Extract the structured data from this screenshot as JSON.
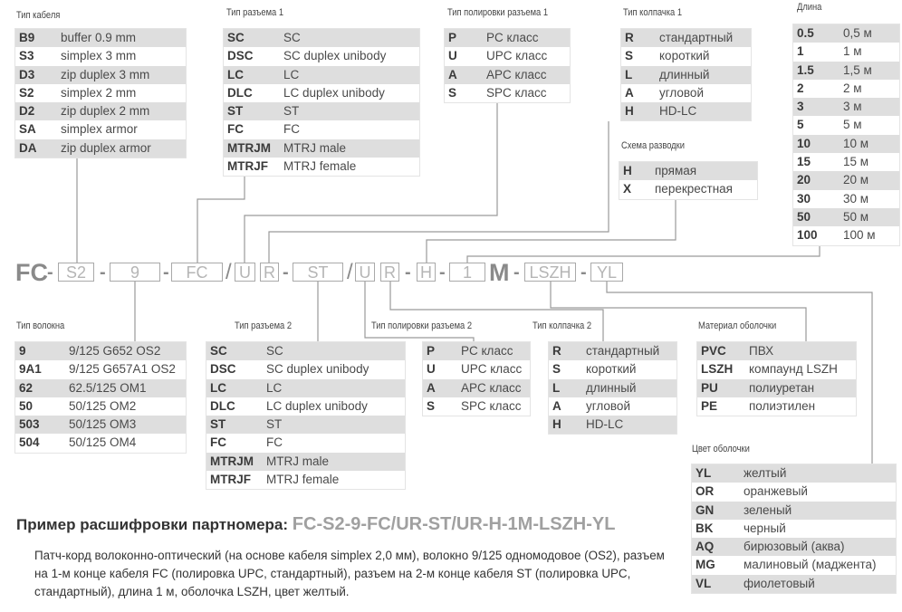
{
  "tables": {
    "cable": {
      "label": "Тип кабеля",
      "rows": [
        [
          "B9",
          "buffer 0.9 mm"
        ],
        [
          "S3",
          "simplex 3 mm"
        ],
        [
          "D3",
          "zip duplex 3 mm"
        ],
        [
          "S2",
          "simplex 2 mm"
        ],
        [
          "D2",
          "zip duplex 2 mm"
        ],
        [
          "SA",
          "simplex armor"
        ],
        [
          "DA",
          "zip duplex armor"
        ]
      ]
    },
    "connector1": {
      "label": "Тип разъема 1",
      "rows": [
        [
          "SC",
          "SC"
        ],
        [
          "DSC",
          "SC duplex unibody"
        ],
        [
          "LC",
          "LC"
        ],
        [
          "DLC",
          "LC duplex unibody"
        ],
        [
          "ST",
          "ST"
        ],
        [
          "FC",
          "FC"
        ],
        [
          "MTRJM",
          "MTRJ male"
        ],
        [
          "MTRJF",
          "MTRJ female"
        ]
      ]
    },
    "polish1": {
      "label": "Тип полировки разъема 1",
      "rows": [
        [
          "P",
          "PC класс"
        ],
        [
          "U",
          "UPC класс"
        ],
        [
          "A",
          "APC класс"
        ],
        [
          "S",
          "SPC класс"
        ]
      ]
    },
    "cap1": {
      "label": "Тип колпачка 1",
      "rows": [
        [
          "R",
          "стандартный"
        ],
        [
          "S",
          "короткий"
        ],
        [
          "L",
          "длинный"
        ],
        [
          "A",
          "угловой"
        ],
        [
          "H",
          "HD-LC"
        ]
      ]
    },
    "length": {
      "label": "Длина",
      "rows": [
        [
          "0.5",
          "0,5 м"
        ],
        [
          "1",
          "1 м"
        ],
        [
          "1.5",
          "1,5 м"
        ],
        [
          "2",
          "2 м"
        ],
        [
          "3",
          "3 м"
        ],
        [
          "5",
          "5 м"
        ],
        [
          "10",
          "10 м"
        ],
        [
          "15",
          "15 м"
        ],
        [
          "20",
          "20 м"
        ],
        [
          "30",
          "30 м"
        ],
        [
          "50",
          "50 м"
        ],
        [
          "100",
          "100 м"
        ]
      ]
    },
    "scheme": {
      "label": "Схема разводки",
      "rows": [
        [
          "H",
          "прямая"
        ],
        [
          "X",
          "перекрестная"
        ]
      ]
    },
    "fiber": {
      "label": "Тип волокна",
      "rows": [
        [
          "9",
          "9/125 G652 OS2"
        ],
        [
          "9A1",
          "9/125 G657A1 OS2"
        ],
        [
          "62",
          "62.5/125 OM1"
        ],
        [
          "50",
          "50/125 OM2"
        ],
        [
          "503",
          "50/125 OM3"
        ],
        [
          "504",
          "50/125 OM4"
        ]
      ]
    },
    "connector2": {
      "label": "Тип разъема 2",
      "rows": [
        [
          "SC",
          "SC"
        ],
        [
          "DSC",
          "SC duplex unibody"
        ],
        [
          "LC",
          "LC"
        ],
        [
          "DLC",
          "LC duplex unibody"
        ],
        [
          "ST",
          "ST"
        ],
        [
          "FC",
          "FC"
        ],
        [
          "MTRJM",
          "MTRJ male"
        ],
        [
          "MTRJF",
          "MTRJ female"
        ]
      ]
    },
    "polish2": {
      "label": "Тип полировки разъема 2",
      "rows": [
        [
          "P",
          "PC класс"
        ],
        [
          "U",
          "UPC класс"
        ],
        [
          "A",
          "APC класс"
        ],
        [
          "S",
          "SPC класс"
        ]
      ]
    },
    "cap2": {
      "label": "Тип колпачка 2",
      "rows": [
        [
          "R",
          "стандартный"
        ],
        [
          "S",
          "короткий"
        ],
        [
          "L",
          "длинный"
        ],
        [
          "A",
          "угловой"
        ],
        [
          "H",
          "HD-LC"
        ]
      ]
    },
    "material": {
      "label": "Материал оболочки",
      "rows": [
        [
          "PVC",
          "ПВХ"
        ],
        [
          "LSZH",
          "компаунд LSZH"
        ],
        [
          "PU",
          "полиуретан"
        ],
        [
          "PE",
          "полиэтилен"
        ]
      ]
    },
    "color": {
      "label": "Цвет оболочки",
      "rows": [
        [
          "YL",
          "желтый"
        ],
        [
          "OR",
          "оранжевый"
        ],
        [
          "GN",
          "зеленый"
        ],
        [
          "BK",
          "черный"
        ],
        [
          "AQ",
          "бирюзовый (аква)"
        ],
        [
          "MG",
          "малиновый (маджента)"
        ],
        [
          "VL",
          "фиолетовый"
        ]
      ]
    }
  },
  "code_line": {
    "prefix": "FC",
    "dash": "-",
    "slash": "/",
    "meter": "M",
    "cable": "S2",
    "fiber": "9",
    "connector1": "FC",
    "polish1": "U",
    "cap1": "R",
    "connector2": "ST",
    "polish2": "U",
    "cap2": "R",
    "scheme": "H",
    "length": "1",
    "material": "LSZH",
    "color": "YL"
  },
  "example": {
    "title": "Пример расшифровки партномера:",
    "part_number": "FC-S2-9-FC/UR-ST/UR-H-1M-LSZH-YL",
    "description": "Патч-корд волоконно-оптический (на основе кабеля simplex 2,0 мм), волокно 9/125 одномодовое (OS2), разъем на 1-м конце кабеля FC (полировка UPC, стандартный), разъем на 2-м конце кабеля ST (полировка UPC, стандартный), длина 1 м, оболочка LSZH, цвет желтый."
  },
  "colors": {
    "row_shade": "#dedede",
    "line": "#9a9a9a",
    "code_text": "#a8a8a8",
    "text": "#3a3a3a"
  }
}
